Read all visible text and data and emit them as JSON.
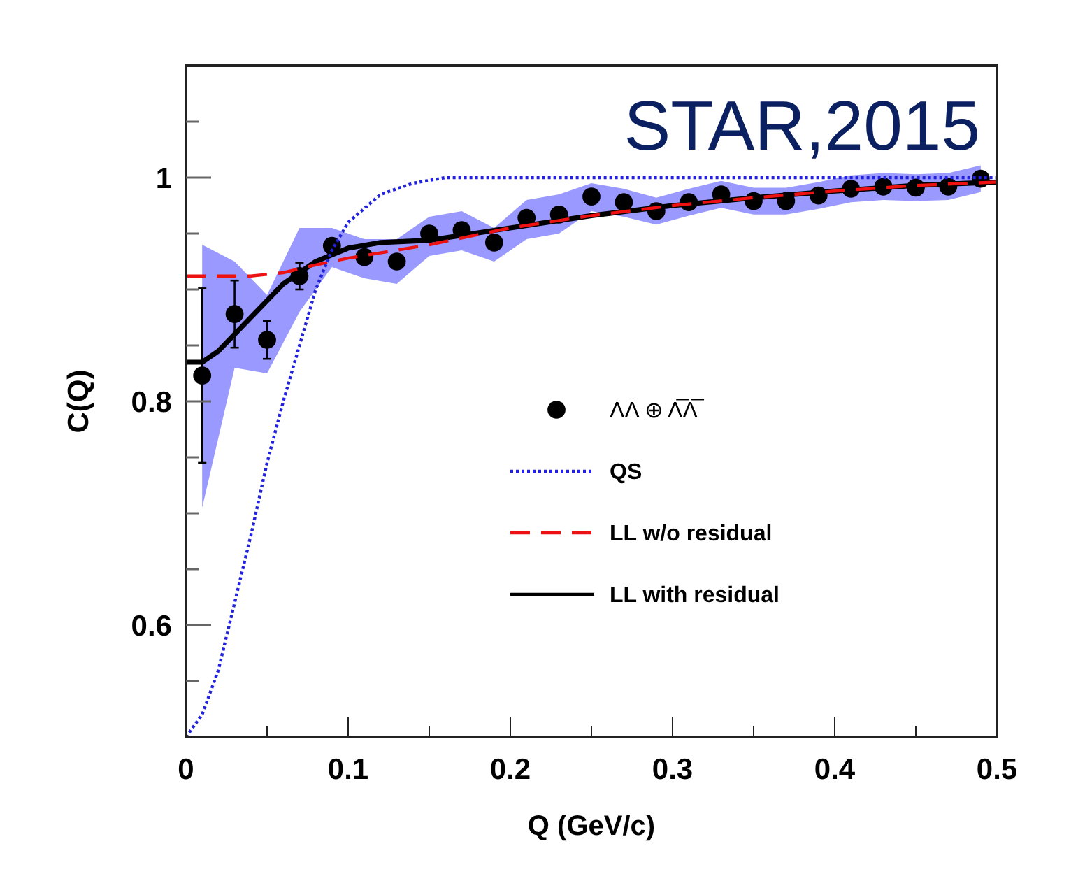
{
  "chart_data": {
    "type": "line",
    "xlabel": "Q (GeV/c)",
    "ylabel": "C(Q)",
    "annotations": [
      "STAR,2015"
    ],
    "xlim": [
      0,
      0.5
    ],
    "ylim": [
      0.5,
      1.1
    ],
    "xticks": [
      0,
      {
        "value": 0.05,
        "label": null
      },
      0.1,
      {
        "value": 0.15,
        "label": null
      },
      0.2,
      {
        "value": 0.25,
        "label": null
      },
      0.3,
      {
        "value": 0.35,
        "label": null
      },
      0.4,
      {
        "value": 0.45,
        "label": null
      },
      0.5
    ],
    "yticks": [
      {
        "value": 0.55,
        "label": null
      },
      0.6,
      {
        "value": 0.65,
        "label": null
      },
      {
        "value": 0.7,
        "label": null
      },
      {
        "value": 0.75,
        "label": null
      },
      0.8,
      {
        "value": 0.85,
        "label": null
      },
      {
        "value": 0.9,
        "label": null
      },
      {
        "value": 0.95,
        "label": null
      },
      1,
      {
        "value": 1.05,
        "label": null
      }
    ],
    "grid": false,
    "legend": "right",
    "series": [
      {
        "name": "ΛΛ ⊕ Λ̅Λ̅",
        "type": "scatter",
        "marker": "circle",
        "color": "#000000",
        "x": [
          0.01,
          0.03,
          0.05,
          0.07,
          0.09,
          0.11,
          0.13,
          0.15,
          0.17,
          0.19,
          0.21,
          0.23,
          0.25,
          0.27,
          0.29,
          0.31,
          0.33,
          0.35,
          0.37,
          0.39,
          0.41,
          0.43,
          0.45,
          0.47,
          0.49
        ],
        "values": [
          0.823,
          0.878,
          0.855,
          0.912,
          0.939,
          0.929,
          0.925,
          0.95,
          0.953,
          0.942,
          0.964,
          0.967,
          0.983,
          0.978,
          0.97,
          0.978,
          0.985,
          0.979,
          0.979,
          0.984,
          0.99,
          0.992,
          0.991,
          0.992,
          0.999
        ],
        "errors": [
          0.078,
          0.03,
          0.017,
          0.012,
          null,
          null,
          null,
          null,
          null,
          null,
          null,
          null,
          null,
          null,
          null,
          null,
          null,
          null,
          null,
          null,
          null,
          null,
          null,
          null,
          null
        ],
        "lower": [
          0.705,
          0.83,
          0.825,
          0.88,
          0.92,
          0.91,
          0.905,
          0.93,
          0.935,
          0.925,
          0.945,
          0.95,
          0.97,
          0.965,
          0.958,
          0.966,
          0.973,
          0.967,
          0.967,
          0.972,
          0.978,
          0.98,
          0.979,
          0.98,
          0.987
        ],
        "upper": [
          0.94,
          0.925,
          0.895,
          0.955,
          0.955,
          0.945,
          0.945,
          0.965,
          0.97,
          0.955,
          0.98,
          0.985,
          0.995,
          0.99,
          0.982,
          0.99,
          0.997,
          0.991,
          0.991,
          0.996,
          1.002,
          1.004,
          1.003,
          1.004,
          1.011
        ]
      },
      {
        "name": "QS",
        "line_style": "dotted",
        "color": "#2222dd",
        "x": [
          0,
          0.01,
          0.02,
          0.03,
          0.04,
          0.05,
          0.06,
          0.07,
          0.08,
          0.09,
          0.1,
          0.12,
          0.14,
          0.16,
          0.5
        ],
        "values": [
          0.5,
          0.52,
          0.56,
          0.62,
          0.68,
          0.745,
          0.8,
          0.85,
          0.9,
          0.935,
          0.96,
          0.985,
          0.995,
          1,
          1
        ]
      },
      {
        "name": "LL w/o residual",
        "line_style": "dashed",
        "color": "#ee1111",
        "x": [
          0,
          0.04,
          0.06,
          0.08,
          0.1,
          0.15,
          0.2,
          0.25,
          0.3,
          0.35,
          0.4,
          0.45,
          0.5
        ],
        "values": [
          0.912,
          0.912,
          0.915,
          0.922,
          0.928,
          0.94,
          0.955,
          0.966,
          0.975,
          0.982,
          0.988,
          0.993,
          0.996
        ]
      },
      {
        "name": "LL with residual",
        "line_style": "solid",
        "color": "#000000",
        "x": [
          0,
          0.01,
          0.02,
          0.04,
          0.06,
          0.08,
          0.1,
          0.12,
          0.15,
          0.2,
          0.25,
          0.3,
          0.35,
          0.4,
          0.45,
          0.5
        ],
        "values": [
          0.835,
          0.835,
          0.845,
          0.875,
          0.905,
          0.925,
          0.937,
          0.942,
          0.944,
          0.955,
          0.966,
          0.975,
          0.982,
          0.988,
          0.993,
          0.996
        ]
      }
    ]
  }
}
